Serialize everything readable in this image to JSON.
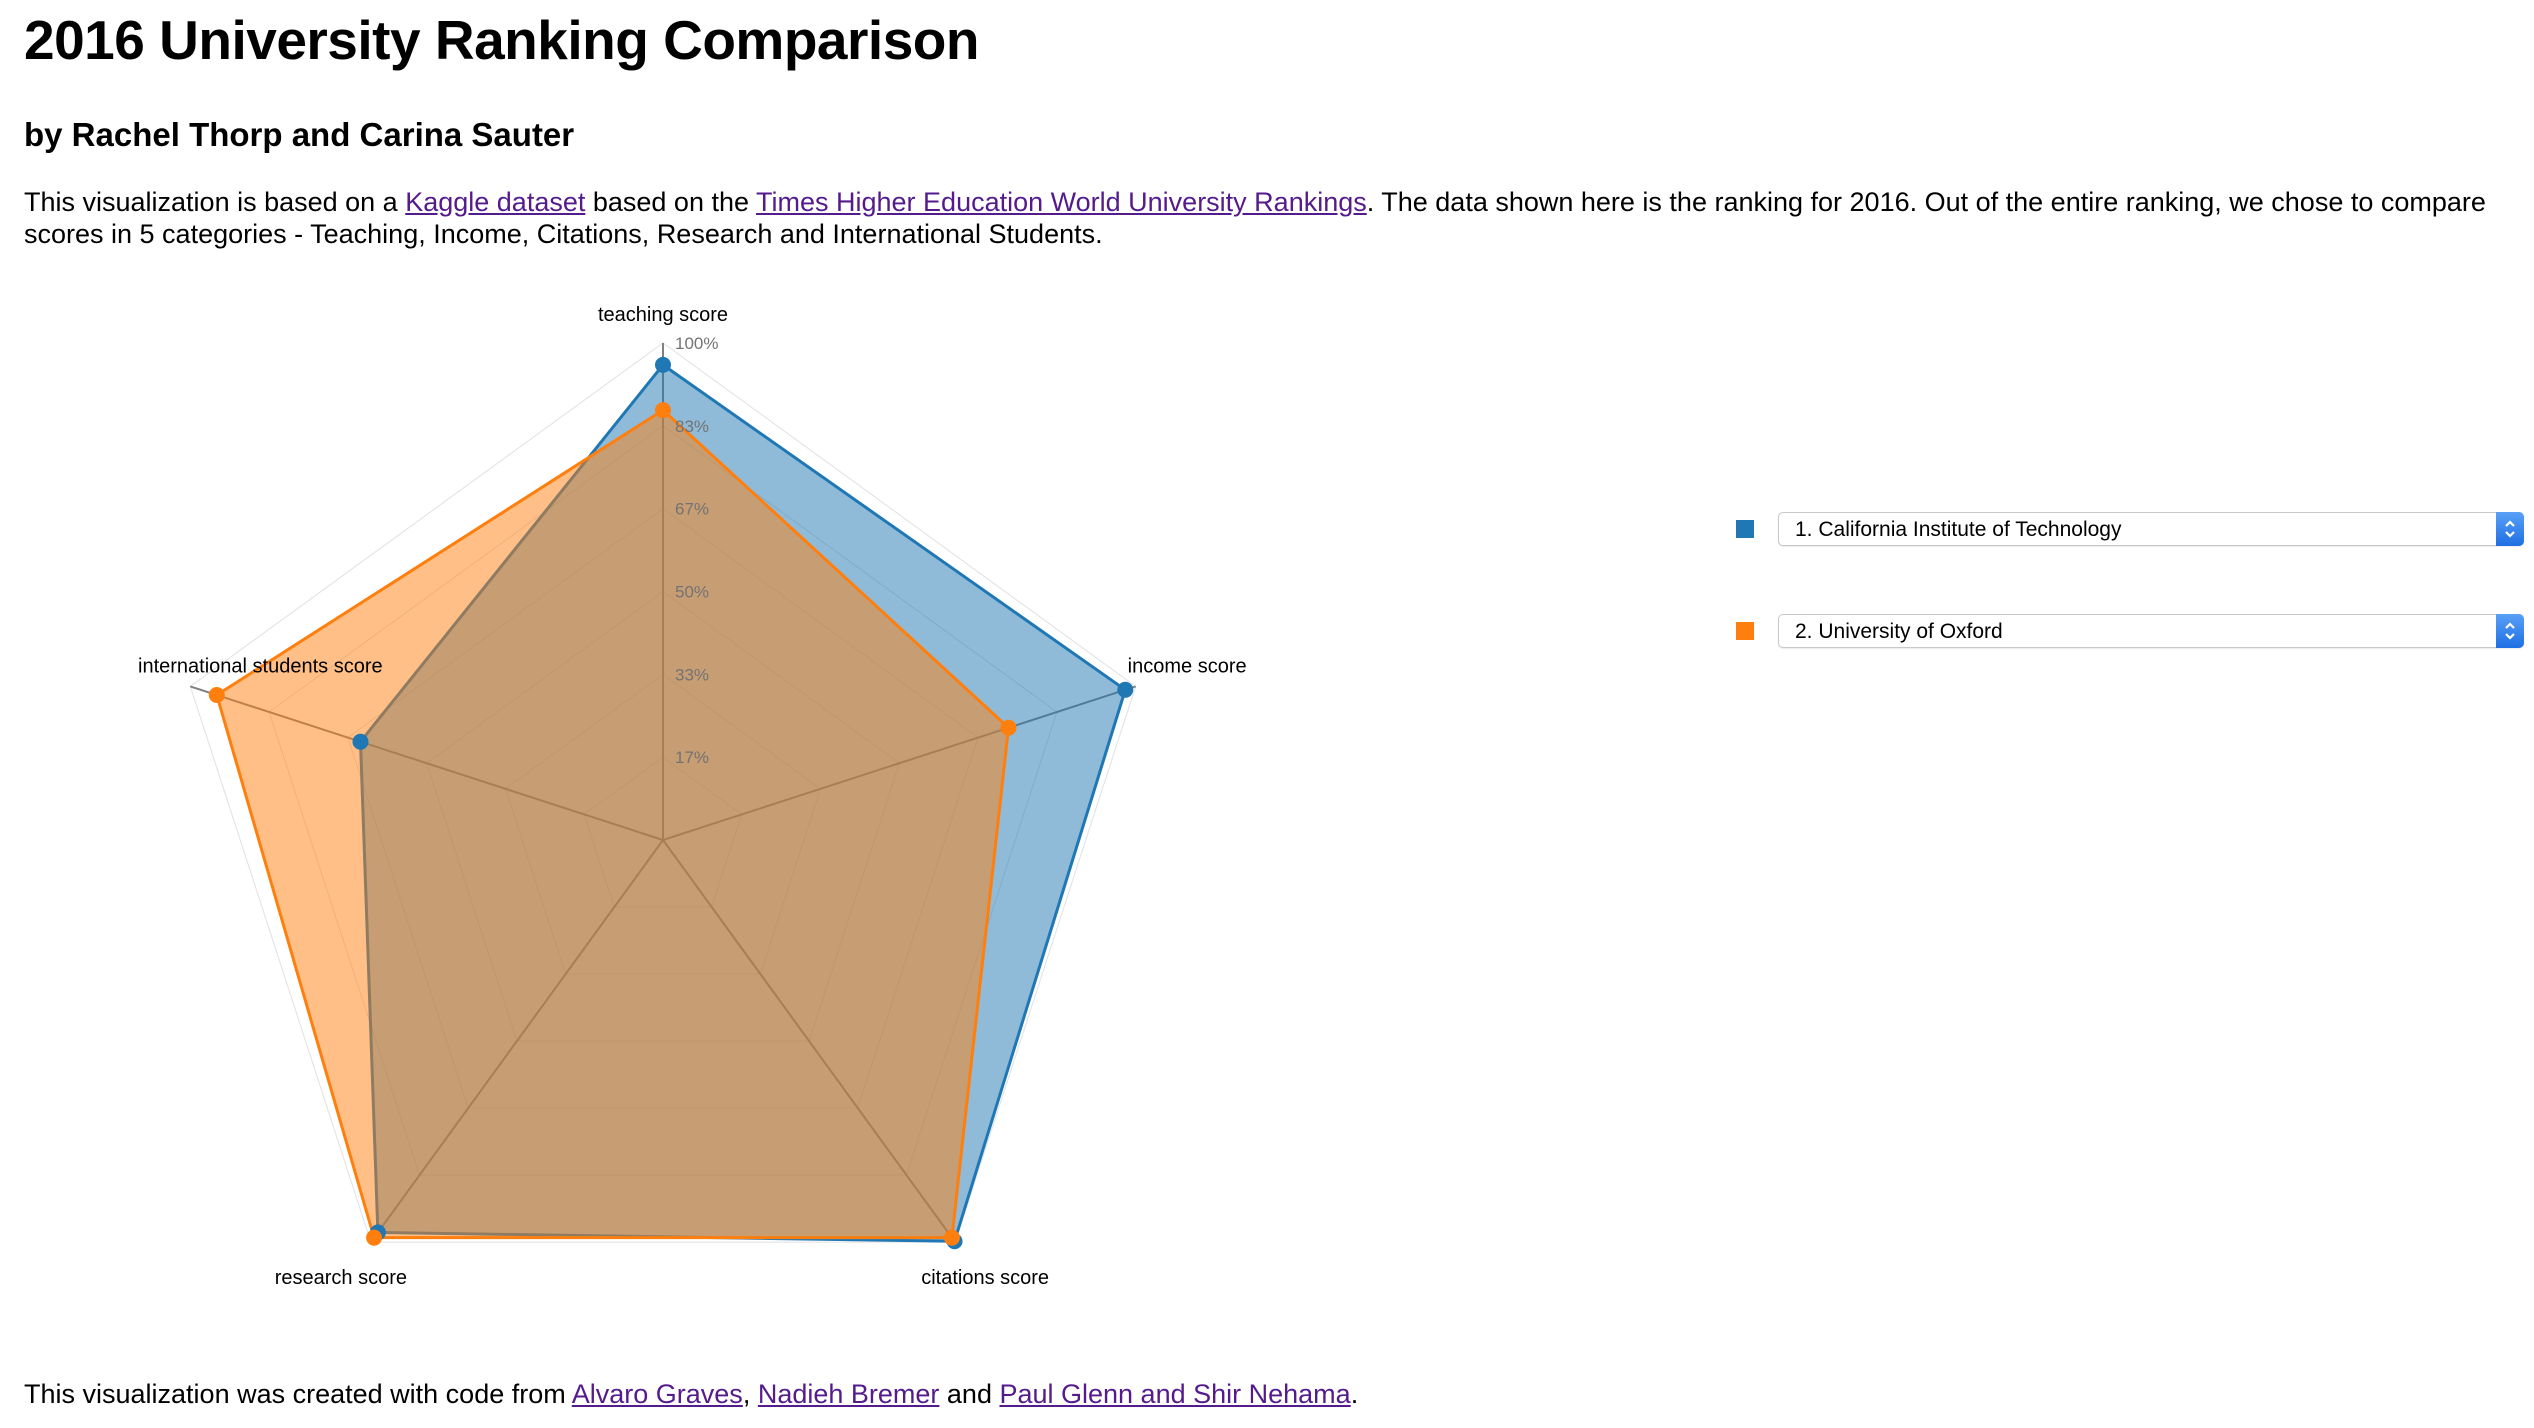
{
  "header": {
    "title": "2016 University Ranking Comparison",
    "subtitle": "by Rachel Thorp and Carina Sauter"
  },
  "intro": {
    "text1": "This visualization is based on a ",
    "link_kaggle": "Kaggle dataset",
    "text2": " based on the ",
    "link_the": "Times Higher Education World University Rankings",
    "text3": ". The data shown here is the ranking for 2016. Out of the entire ranking, we chose to compare scores in 5 categories - Teaching, Income, Citations, Research and International Students."
  },
  "footer": {
    "text1": "This visualization was created with code from ",
    "link1": "Alvaro Graves",
    "sep1": ", ",
    "link2": "Nadieh Bremer",
    "sep2": " and ",
    "link3": "Paul Glenn and Shir Nehama",
    "end": "."
  },
  "legend": {
    "items": [
      {
        "label": "1. California Institute of Technology",
        "color": "#1f77b4",
        "icon": "chevron-updown-icon"
      },
      {
        "label": "2. University of Oxford",
        "color": "#ff7f0e",
        "icon": "chevron-updown-icon"
      }
    ]
  },
  "chart_data": {
    "type": "radar",
    "axes": [
      "teaching score",
      "income score",
      "citations score",
      "research score",
      "international students score"
    ],
    "range": [
      0,
      100
    ],
    "tick_labels": [
      "17%",
      "33%",
      "50%",
      "67%",
      "83%",
      "100%"
    ],
    "series": [
      {
        "name": "1. California Institute of Technology",
        "color": "#1f77b4",
        "values": [
          95.6,
          97.8,
          99.8,
          97.6,
          64.0
        ]
      },
      {
        "name": "2. University of Oxford",
        "color": "#ff7f0e",
        "values": [
          86.5,
          73.1,
          98.9,
          98.9,
          94.4
        ]
      }
    ]
  }
}
